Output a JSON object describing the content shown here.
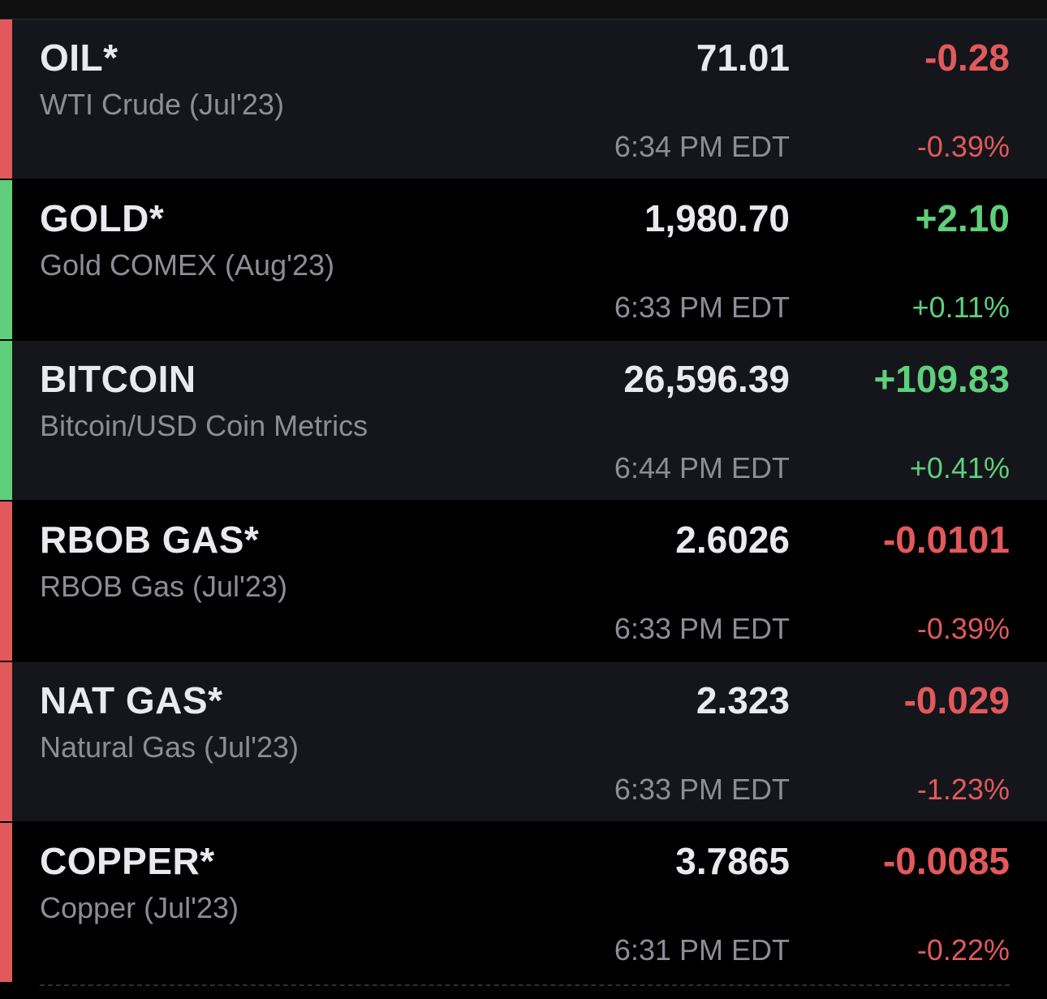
{
  "colors": {
    "negative": "#e2595b",
    "positive": "#5fcf7c",
    "row_alt_bg": "#14161b",
    "row_bg": "#000000",
    "primary_text": "#e9e9ee",
    "secondary_text": "#8c8e96"
  },
  "quotes": [
    {
      "symbol": "OIL*",
      "name": "WTI Crude (Jul'23)",
      "price": "71.01",
      "change": "-0.28",
      "time": "6:34 PM EDT",
      "change_pct": "-0.39%",
      "direction": "down"
    },
    {
      "symbol": "GOLD*",
      "name": "Gold COMEX (Aug'23)",
      "price": "1,980.70",
      "change": "+2.10",
      "time": "6:33 PM EDT",
      "change_pct": "+0.11%",
      "direction": "up"
    },
    {
      "symbol": "BITCOIN",
      "name": "Bitcoin/USD Coin Metrics",
      "price": "26,596.39",
      "change": "+109.83",
      "time": "6:44 PM EDT",
      "change_pct": "+0.41%",
      "direction": "up"
    },
    {
      "symbol": "RBOB GAS*",
      "name": "RBOB Gas (Jul'23)",
      "price": "2.6026",
      "change": "-0.0101",
      "time": "6:33 PM EDT",
      "change_pct": "-0.39%",
      "direction": "down"
    },
    {
      "symbol": "NAT GAS*",
      "name": "Natural Gas (Jul'23)",
      "price": "2.323",
      "change": "-0.029",
      "time": "6:33 PM EDT",
      "change_pct": "-1.23%",
      "direction": "down"
    },
    {
      "symbol": "COPPER*",
      "name": "Copper (Jul'23)",
      "price": "3.7865",
      "change": "-0.0085",
      "time": "6:31 PM EDT",
      "change_pct": "-0.22%",
      "direction": "down"
    }
  ]
}
